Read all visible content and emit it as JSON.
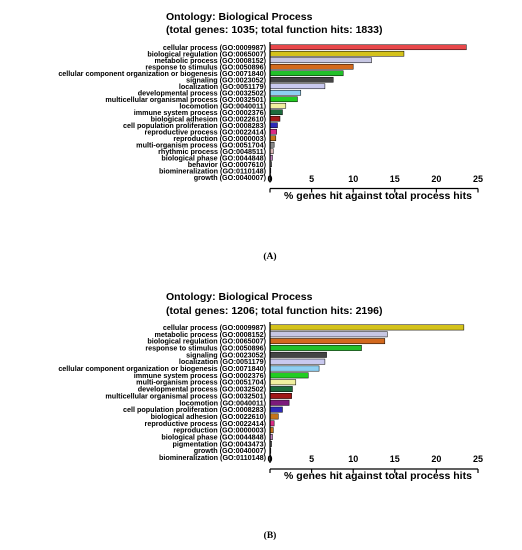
{
  "chart_data": [
    {
      "type": "bar",
      "orientation": "horizontal",
      "title": "Ontology: Biological Process",
      "subtitle": "(total genes: 1035; total function hits: 1833)",
      "xlabel": "% genes hit against total process hits",
      "xlim": [
        0,
        25
      ],
      "xticks": [
        "0",
        "5",
        "10",
        "15",
        "20",
        "25"
      ],
      "panel_label": "(A)",
      "grid": false,
      "categories": [
        "cellular process (GO:0009987)",
        "biological regulation (GO:0065007)",
        "metabolic process (GO:0008152)",
        "response to stimulus (GO:0050896)",
        "cellular component organization or biogenesis (GO:0071840)",
        "signaling (GO:0023052)",
        "localization (GO:0051179)",
        "developmental process (GO:0032502)",
        "multicellular organismal process (GO:0032501)",
        "locomotion (GO:0040011)",
        "immune system process (GO:0002376)",
        "biological adhesion (GO:0022610)",
        "cell population proliferation (GO:0008283)",
        "reproductive process (GO:0022414)",
        "reproduction (GO:0000003)",
        "multi-organism process (GO:0051704)",
        "rhythmic process (GO:0048511)",
        "biological phase (GO:0044848)",
        "behavior (GO:0007610)",
        "biomineralization (GO:0110148)",
        "growth (GO:0040007)"
      ],
      "values": [
        23.6,
        16.1,
        12.2,
        10.0,
        8.8,
        7.6,
        6.6,
        3.7,
        3.3,
        1.9,
        1.5,
        1.2,
        0.9,
        0.8,
        0.7,
        0.5,
        0.4,
        0.3,
        0.2,
        0.1,
        0.1
      ],
      "colors": [
        "#e8474a",
        "#d4c21b",
        "#c7c7e3",
        "#d2691e",
        "#22c02a",
        "#444444",
        "#c9c9ef",
        "#8ecff2",
        "#22cc22",
        "#f0f0a0",
        "#1c6b3c",
        "#a01818",
        "#2e2ab8",
        "#d92b86",
        "#c4741a",
        "#888888",
        "#d9b5b5",
        "#c080c0",
        "#909090",
        "#a0a0c0",
        "#909090"
      ]
    },
    {
      "type": "bar",
      "orientation": "horizontal",
      "title": "Ontology: Biological Process",
      "subtitle": "(total genes: 1206; total function hits: 2196)",
      "xlabel": "% genes hit against total process hits",
      "xlim": [
        0,
        25
      ],
      "xticks": [
        "0",
        "5",
        "10",
        "15",
        "20",
        "25"
      ],
      "panel_label": "(B)",
      "grid": false,
      "categories": [
        "cellular process (GO:0009987)",
        "metabolic process (GO:0008152)",
        "biological regulation (GO:0065007)",
        "response to stimulus (GO:0050896)",
        "signaling (GO:0023052)",
        "localization (GO:0051179)",
        "cellular component organization or biogenesis (GO:0071840)",
        "immune system process (GO:0002376)",
        "multi-organism process (GO:0051704)",
        "developmental process (GO:0032502)",
        "multicellular organismal process (GO:0032501)",
        "locomotion (GO:0040011)",
        "cell population proliferation (GO:0008283)",
        "biological adhesion (GO:0022610)",
        "reproductive process (GO:0022414)",
        "reproduction (GO:0000003)",
        "biological phase (GO:0044848)",
        "pigmentation (GO:0043473)",
        "growth (GO:0040007)",
        "biomineralization (GO:0110148)"
      ],
      "values": [
        23.3,
        14.1,
        13.8,
        11.0,
        6.8,
        6.6,
        5.9,
        4.6,
        3.1,
        2.7,
        2.6,
        2.3,
        1.5,
        1.0,
        0.5,
        0.4,
        0.3,
        0.2,
        0.1,
        0.1
      ],
      "colors": [
        "#d4c21b",
        "#c7c7e3",
        "#d2691e",
        "#22c02a",
        "#444444",
        "#c9c9ef",
        "#8ecff2",
        "#22cc22",
        "#f0f0a0",
        "#1c6b3c",
        "#a01818",
        "#7b1a7b",
        "#2e2ab8",
        "#c4741a",
        "#d92b86",
        "#c4741a",
        "#c080c0",
        "#888888",
        "#909090",
        "#a0a0c0"
      ]
    }
  ]
}
